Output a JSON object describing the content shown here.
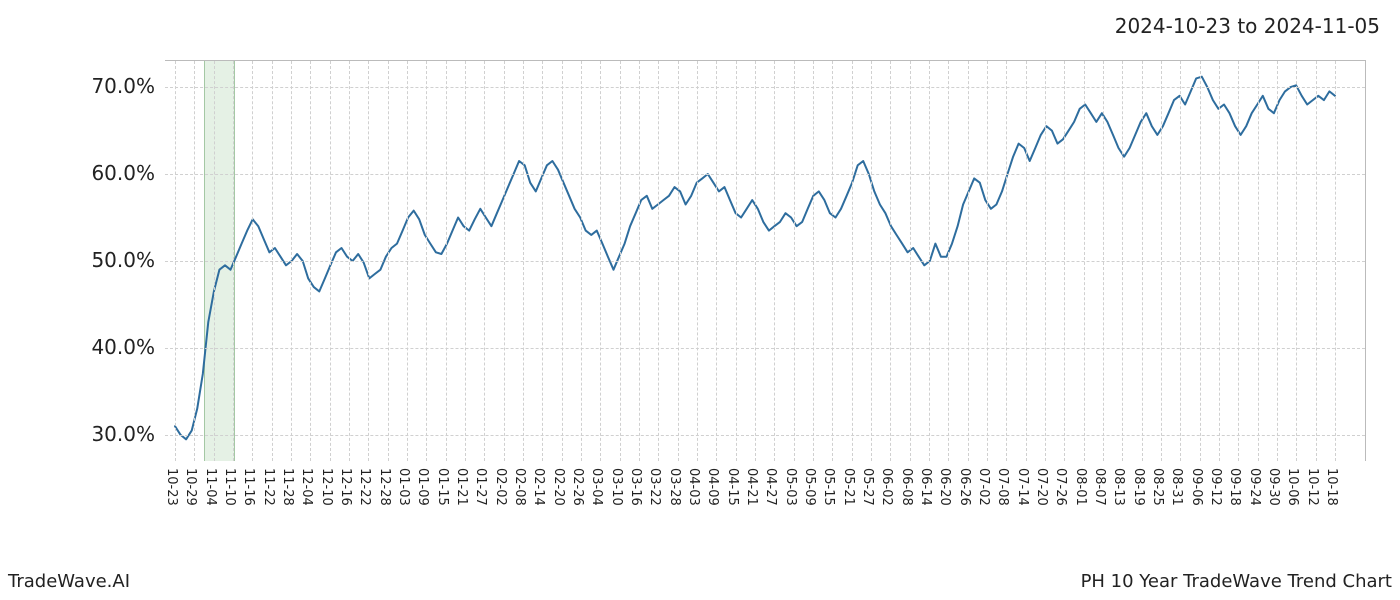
{
  "header": {
    "date_range": "2024-10-23 to 2024-11-05"
  },
  "footer": {
    "left": "TradeWave.AI",
    "right": "PH 10 Year TradeWave Trend Chart"
  },
  "chart": {
    "type": "line",
    "background_color": "#ffffff",
    "grid_color": "#d0d0d0",
    "grid_style": "dashed",
    "line_color": "#2e6d9e",
    "line_width": 2.0,
    "label_fontsize_y": 20,
    "label_fontsize_x": 13,
    "y_axis": {
      "min": 27.0,
      "max": 73.0,
      "ticks": [
        30.0,
        40.0,
        50.0,
        60.0,
        70.0
      ],
      "tick_labels": [
        "30.0%",
        "40.0%",
        "50.0%",
        "60.0%",
        "70.0%"
      ]
    },
    "x_axis": {
      "tick_labels": [
        "10-23",
        "10-29",
        "11-04",
        "11-10",
        "11-16",
        "11-22",
        "11-28",
        "12-04",
        "12-10",
        "12-16",
        "12-22",
        "12-28",
        "01-03",
        "01-09",
        "01-15",
        "01-21",
        "01-27",
        "02-02",
        "02-08",
        "02-14",
        "02-20",
        "02-26",
        "03-04",
        "03-10",
        "03-16",
        "03-22",
        "03-28",
        "04-03",
        "04-09",
        "04-15",
        "04-21",
        "04-27",
        "05-03",
        "05-09",
        "05-15",
        "05-21",
        "05-27",
        "06-02",
        "06-08",
        "06-14",
        "06-20",
        "06-26",
        "07-02",
        "07-08",
        "07-14",
        "07-20",
        "07-26",
        "08-01",
        "08-07",
        "08-13",
        "08-19",
        "08-25",
        "08-31",
        "09-06",
        "09-12",
        "09-18",
        "09-24",
        "09-30",
        "10-06",
        "10-12",
        "10-18"
      ]
    },
    "highlight_band": {
      "start_index": 1.5,
      "end_index": 3.0,
      "fill": "rgba(150,200,150,0.25)",
      "border": "rgba(100,160,100,0.5)"
    },
    "series": [
      31.0,
      30.0,
      29.5,
      30.5,
      33.0,
      37.0,
      43.0,
      46.5,
      49.0,
      49.5,
      49.0,
      50.5,
      52.0,
      53.5,
      54.8,
      54.0,
      52.5,
      51.0,
      51.5,
      50.5,
      49.5,
      50.0,
      50.8,
      50.0,
      48.0,
      47.0,
      46.5,
      48.0,
      49.5,
      51.0,
      51.5,
      50.5,
      50.0,
      50.8,
      49.8,
      48.0,
      48.5,
      49.0,
      50.5,
      51.5,
      52.0,
      53.5,
      55.0,
      55.8,
      54.8,
      53.0,
      52.0,
      51.0,
      50.8,
      52.0,
      53.5,
      55.0,
      54.0,
      53.5,
      54.8,
      56.0,
      55.0,
      54.0,
      55.5,
      57.0,
      58.5,
      60.0,
      61.5,
      61.0,
      59.0,
      58.0,
      59.5,
      61.0,
      61.5,
      60.5,
      59.0,
      57.5,
      56.0,
      55.0,
      53.5,
      53.0,
      53.5,
      52.0,
      50.5,
      49.0,
      50.5,
      52.0,
      54.0,
      55.5,
      57.0,
      57.5,
      56.0,
      56.5,
      57.0,
      57.5,
      58.5,
      58.0,
      56.5,
      57.5,
      59.0,
      59.5,
      60.0,
      59.0,
      58.0,
      58.5,
      57.0,
      55.5,
      55.0,
      56.0,
      57.0,
      56.0,
      54.5,
      53.5,
      54.0,
      54.5,
      55.5,
      55.0,
      54.0,
      54.5,
      56.0,
      57.5,
      58.0,
      57.0,
      55.5,
      55.0,
      56.0,
      57.5,
      59.0,
      61.0,
      61.5,
      60.0,
      58.0,
      56.5,
      55.5,
      54.0,
      53.0,
      52.0,
      51.0,
      51.5,
      50.5,
      49.5,
      50.0,
      52.0,
      50.5,
      50.5,
      52.0,
      54.0,
      56.5,
      58.0,
      59.5,
      59.0,
      57.0,
      56.0,
      56.5,
      58.0,
      60.0,
      62.0,
      63.5,
      63.0,
      61.5,
      63.0,
      64.5,
      65.5,
      65.0,
      63.5,
      64.0,
      65.0,
      66.0,
      67.5,
      68.0,
      67.0,
      66.0,
      67.0,
      66.0,
      64.5,
      63.0,
      62.0,
      63.0,
      64.5,
      66.0,
      67.0,
      65.5,
      64.5,
      65.5,
      67.0,
      68.5,
      69.0,
      68.0,
      69.5,
      71.0,
      71.2,
      70.0,
      68.5,
      67.5,
      68.0,
      67.0,
      65.5,
      64.5,
      65.5,
      67.0,
      68.0,
      69.0,
      67.5,
      67.0,
      68.5,
      69.5,
      70.0,
      70.2,
      69.0,
      68.0,
      68.5,
      69.0,
      68.5,
      69.5,
      69.0
    ]
  }
}
